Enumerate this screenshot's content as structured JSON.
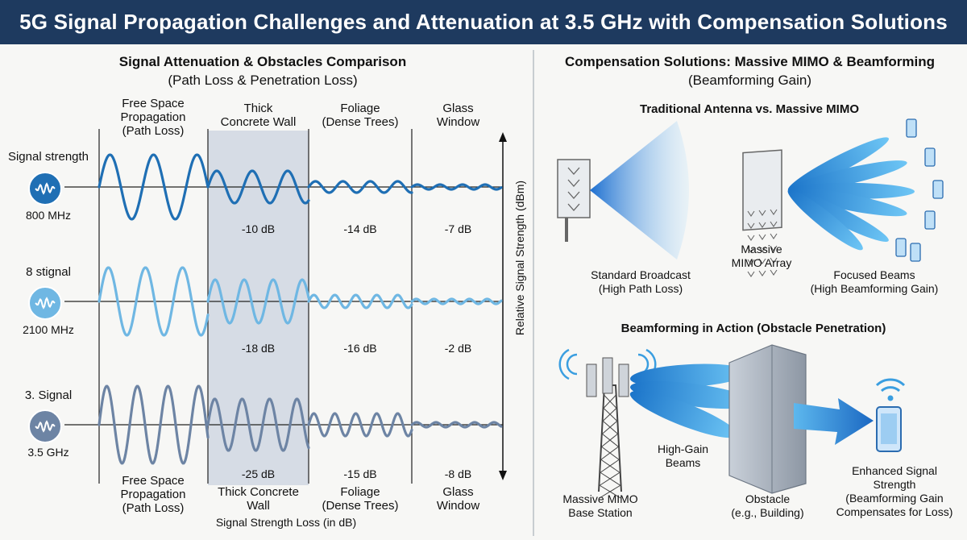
{
  "title": "5G Signal Propagation Challenges and Attenuation at 3.5 GHz with Compensation Solutions",
  "left": {
    "heading": "Signal Attenuation & Obstacles Comparison",
    "subheading": "(Path Loss & Penetration Loss)",
    "columns_top": [
      [
        "Free Space",
        "Propagation",
        "(Path Loss)"
      ],
      [
        "Thick",
        "Concrete Wall"
      ],
      [
        "Foliage",
        "(Dense Trees)"
      ],
      [
        "Glass",
        "Window"
      ]
    ],
    "columns_bottom": [
      [
        "Free Space",
        "Propagation",
        "(Path Loss)"
      ],
      [
        "Thick Concrete",
        "Wall"
      ],
      [
        "Foliage",
        "(Dense Trees)"
      ],
      [
        "Glass",
        "Window"
      ]
    ],
    "rows": [
      {
        "label": "Signal strength",
        "freq": "800 MHz",
        "color": "#1f6fb4",
        "losses": [
          "-10 dB",
          "-14 dB",
          "-7 dB"
        ]
      },
      {
        "label": "8 stignal",
        "freq": "2100 MHz",
        "color": "#6fb7e3",
        "losses": [
          "-18 dB",
          "-16 dB",
          "-2 dB"
        ]
      },
      {
        "label": "3. Signal",
        "freq": "3.5 GHz",
        "color": "#6d84a4",
        "losses": [
          "-25 dB",
          "-15 dB",
          "-8 dB"
        ]
      }
    ],
    "axis_label": "Relative Signal Strength (dBm)",
    "footer": "Signal Strength Loss (in dB)"
  },
  "right": {
    "heading": "Compensation Solutions: Massive MIMO & Beamforming",
    "subheading": "(Beamforming Gain)",
    "section1_title": "Traditional Antenna vs. Massive MIMO",
    "standard_label": [
      "Standard Broadcast",
      "(High Path Loss)"
    ],
    "array_label": [
      "Massive",
      "MIMO Array"
    ],
    "beams_label": [
      "Focused Beams",
      "(High Beamforming Gain)"
    ],
    "section2_title": "Beamforming in Action (Obstacle Penetration)",
    "tower_label": [
      "Massive MIMO",
      "Base Station"
    ],
    "beams2_label": [
      "High-Gain",
      "Beams"
    ],
    "obstacle_label": [
      "Obstacle",
      "(e.g., Building)"
    ],
    "enhanced_label": [
      "Enhanced Signal",
      "Strength",
      "(Beamforming Gain",
      "Compensates for Loss)"
    ]
  },
  "colors": {
    "title_bg": "#1e3a5f",
    "wall_shade": "#d6dce5",
    "beam": "#3a9ee0"
  }
}
